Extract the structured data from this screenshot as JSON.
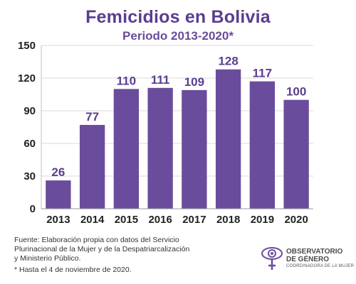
{
  "chart_data": {
    "type": "bar",
    "title": "Femicidios en Bolivia",
    "subtitle": "Periodo 2013-2020*",
    "categories": [
      "2013",
      "2014",
      "2015",
      "2016",
      "2017",
      "2018",
      "2019",
      "2020"
    ],
    "values": [
      26,
      77,
      110,
      111,
      109,
      128,
      117,
      100
    ],
    "data_labels": [
      "26",
      "77",
      "110",
      "111",
      "109",
      "128",
      "117",
      "100"
    ],
    "ylim": [
      0,
      150
    ],
    "yticks": [
      0,
      30,
      60,
      90,
      120,
      150
    ],
    "xlabel": "",
    "ylabel": "",
    "grid": true,
    "bar_color": "#6a4c9c",
    "label_color": "#5b3d8f"
  },
  "footer": {
    "source": "Fuente: Elaboración propia con datos del Servicio Plurinacional de la Mujer y de la Despatriarcalización y Ministerio Público.",
    "note": "* Hasta el 4 de noviembre de 2020."
  },
  "logo": {
    "line1": "OBSERVATORIO",
    "line2": "DE GÉNERO",
    "tagline": "COORDINADORA DE LA MUJER",
    "icon": "eye-venus-icon"
  }
}
